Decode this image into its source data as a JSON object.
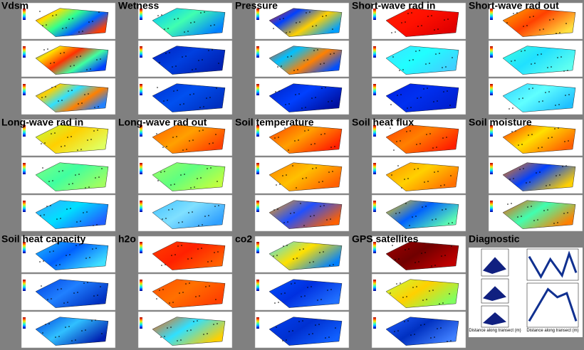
{
  "panels": [
    {
      "title": "Vdsm"
    },
    {
      "title": "Wetness"
    },
    {
      "title": "Pressure"
    },
    {
      "title": "Short-wave rad in"
    },
    {
      "title": "Short-wave rad out"
    },
    {
      "title": "Long-wave rad in"
    },
    {
      "title": "Long-wave rad out"
    },
    {
      "title": "Soil temperature"
    },
    {
      "title": "Soil heat flux"
    },
    {
      "title": "Soil moisture"
    },
    {
      "title": "Soil heat capacity"
    },
    {
      "title": "h2o"
    },
    {
      "title": "co2"
    },
    {
      "title": "GPS satellites"
    },
    {
      "title": "Diagnostic"
    }
  ],
  "diagnostic": {
    "x_label": "Distance along transect (m)"
  }
}
